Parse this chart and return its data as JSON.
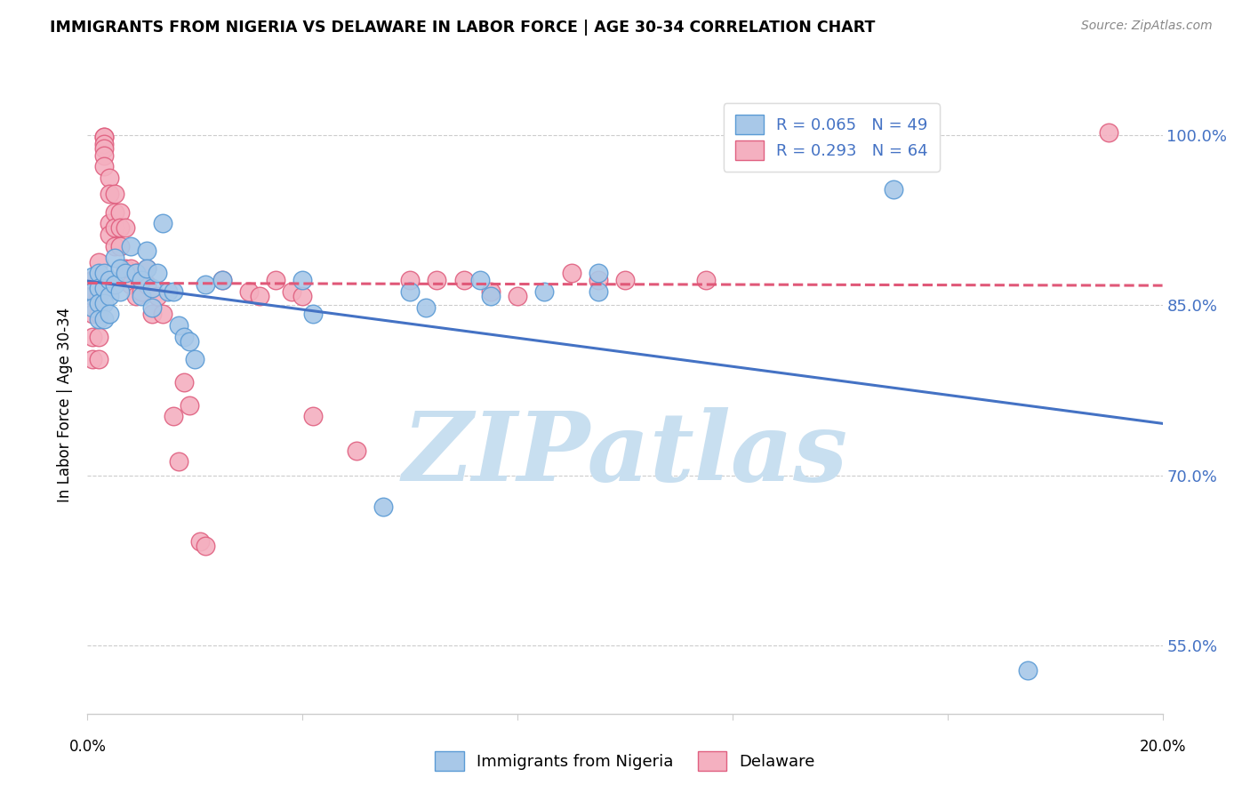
{
  "title": "IMMIGRANTS FROM NIGERIA VS DELAWARE IN LABOR FORCE | AGE 30-34 CORRELATION CHART",
  "source": "Source: ZipAtlas.com",
  "ylabel": "In Labor Force | Age 30-34",
  "x_range": [
    0.0,
    0.2
  ],
  "y_range": [
    0.49,
    1.035
  ],
  "legend_blue_label": "R = 0.065   N = 49",
  "legend_pink_label": "R = 0.293   N = 64",
  "legend_bottom_blue": "Immigrants from Nigeria",
  "legend_bottom_pink": "Delaware",
  "blue_fill": "#A8C8E8",
  "pink_fill": "#F4B0C0",
  "blue_edge": "#5B9BD5",
  "pink_edge": "#E06080",
  "blue_line": "#4472C4",
  "pink_line": "#E05878",
  "grid_color": "#CCCCCC",
  "right_axis_color": "#4472C4",
  "watermark_color": "#C8DFF0",
  "nigeria_x": [
    0.001,
    0.001,
    0.001,
    0.002,
    0.002,
    0.002,
    0.002,
    0.003,
    0.003,
    0.003,
    0.003,
    0.004,
    0.004,
    0.004,
    0.005,
    0.005,
    0.006,
    0.006,
    0.007,
    0.008,
    0.009,
    0.01,
    0.01,
    0.011,
    0.011,
    0.012,
    0.012,
    0.013,
    0.014,
    0.015,
    0.016,
    0.017,
    0.018,
    0.019,
    0.02,
    0.022,
    0.025,
    0.04,
    0.042,
    0.055,
    0.06,
    0.063,
    0.073,
    0.075,
    0.085,
    0.095,
    0.095,
    0.15,
    0.175
  ],
  "nigeria_y": [
    0.875,
    0.862,
    0.848,
    0.878,
    0.865,
    0.852,
    0.838,
    0.878,
    0.865,
    0.852,
    0.838,
    0.872,
    0.858,
    0.842,
    0.892,
    0.868,
    0.882,
    0.862,
    0.878,
    0.902,
    0.878,
    0.872,
    0.858,
    0.898,
    0.882,
    0.865,
    0.848,
    0.878,
    0.922,
    0.862,
    0.862,
    0.832,
    0.822,
    0.818,
    0.802,
    0.868,
    0.872,
    0.872,
    0.842,
    0.672,
    0.862,
    0.848,
    0.872,
    0.858,
    0.862,
    0.878,
    0.862,
    0.952,
    0.528
  ],
  "delaware_x": [
    0.001,
    0.001,
    0.001,
    0.001,
    0.001,
    0.002,
    0.002,
    0.002,
    0.002,
    0.002,
    0.002,
    0.003,
    0.003,
    0.003,
    0.003,
    0.003,
    0.003,
    0.004,
    0.004,
    0.004,
    0.004,
    0.005,
    0.005,
    0.005,
    0.005,
    0.006,
    0.006,
    0.006,
    0.007,
    0.007,
    0.008,
    0.008,
    0.009,
    0.009,
    0.01,
    0.011,
    0.011,
    0.012,
    0.013,
    0.014,
    0.016,
    0.017,
    0.018,
    0.019,
    0.021,
    0.022,
    0.025,
    0.03,
    0.032,
    0.035,
    0.038,
    0.04,
    0.042,
    0.05,
    0.06,
    0.065,
    0.07,
    0.075,
    0.08,
    0.09,
    0.095,
    0.1,
    0.115,
    0.19
  ],
  "delaware_y": [
    0.872,
    0.858,
    0.842,
    0.822,
    0.802,
    0.888,
    0.872,
    0.858,
    0.842,
    0.822,
    0.802,
    0.998,
    0.998,
    0.992,
    0.988,
    0.982,
    0.972,
    0.962,
    0.948,
    0.922,
    0.912,
    0.948,
    0.932,
    0.918,
    0.902,
    0.932,
    0.918,
    0.902,
    0.918,
    0.882,
    0.882,
    0.868,
    0.878,
    0.858,
    0.862,
    0.882,
    0.868,
    0.842,
    0.858,
    0.842,
    0.752,
    0.712,
    0.782,
    0.762,
    0.642,
    0.638,
    0.872,
    0.862,
    0.858,
    0.872,
    0.862,
    0.858,
    0.752,
    0.722,
    0.872,
    0.872,
    0.872,
    0.862,
    0.858,
    0.878,
    0.872,
    0.872,
    0.872,
    1.002
  ],
  "ytick_positions": [
    0.55,
    0.7,
    0.85,
    1.0
  ],
  "ytick_labels": [
    "55.0%",
    "70.0%",
    "85.0%",
    "100.0%"
  ],
  "xtick_positions": [
    0.0,
    0.04,
    0.08,
    0.12,
    0.16,
    0.2
  ]
}
